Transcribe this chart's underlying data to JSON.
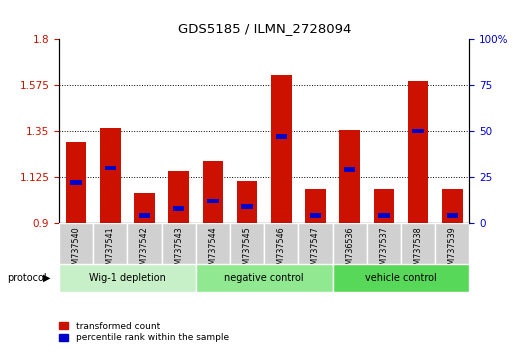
{
  "title": "GDS5185 / ILMN_2728094",
  "samples": [
    "GSM737540",
    "GSM737541",
    "GSM737542",
    "GSM737543",
    "GSM737544",
    "GSM737545",
    "GSM737546",
    "GSM737547",
    "GSM736536",
    "GSM737537",
    "GSM737538",
    "GSM737539"
  ],
  "red_values": [
    1.295,
    1.365,
    1.045,
    1.155,
    1.205,
    1.105,
    1.625,
    1.065,
    1.355,
    1.065,
    1.595,
    1.065
  ],
  "blue_values_pct": [
    22,
    30,
    4,
    8,
    12,
    9,
    47,
    4,
    29,
    4,
    50,
    4
  ],
  "y_min": 0.9,
  "y_max": 1.8,
  "y_ticks_left": [
    0.9,
    1.125,
    1.35,
    1.575,
    1.8
  ],
  "y_ticks_left_labels": [
    "0.9",
    "1.125",
    "1.35",
    "1.575",
    "1.8"
  ],
  "y_ticks_right": [
    0,
    25,
    50,
    75,
    100
  ],
  "y_ticks_right_labels": [
    "0",
    "25",
    "50",
    "75",
    "100%"
  ],
  "groups": [
    {
      "label": "Wig-1 depletion",
      "start": 0,
      "end": 4,
      "color": "#c8f0c8"
    },
    {
      "label": "negative control",
      "start": 4,
      "end": 8,
      "color": "#90e890"
    },
    {
      "label": "vehicle control",
      "start": 8,
      "end": 12,
      "color": "#58d858"
    }
  ],
  "protocol_label": "protocol",
  "bar_color": "#cc1100",
  "blue_color": "#0000cc",
  "bar_width": 0.6,
  "plot_bg": "#ffffff",
  "tick_color_left": "#cc1100",
  "tick_color_right": "#0000cc",
  "legend_red": "transformed count",
  "legend_blue": "percentile rank within the sample"
}
